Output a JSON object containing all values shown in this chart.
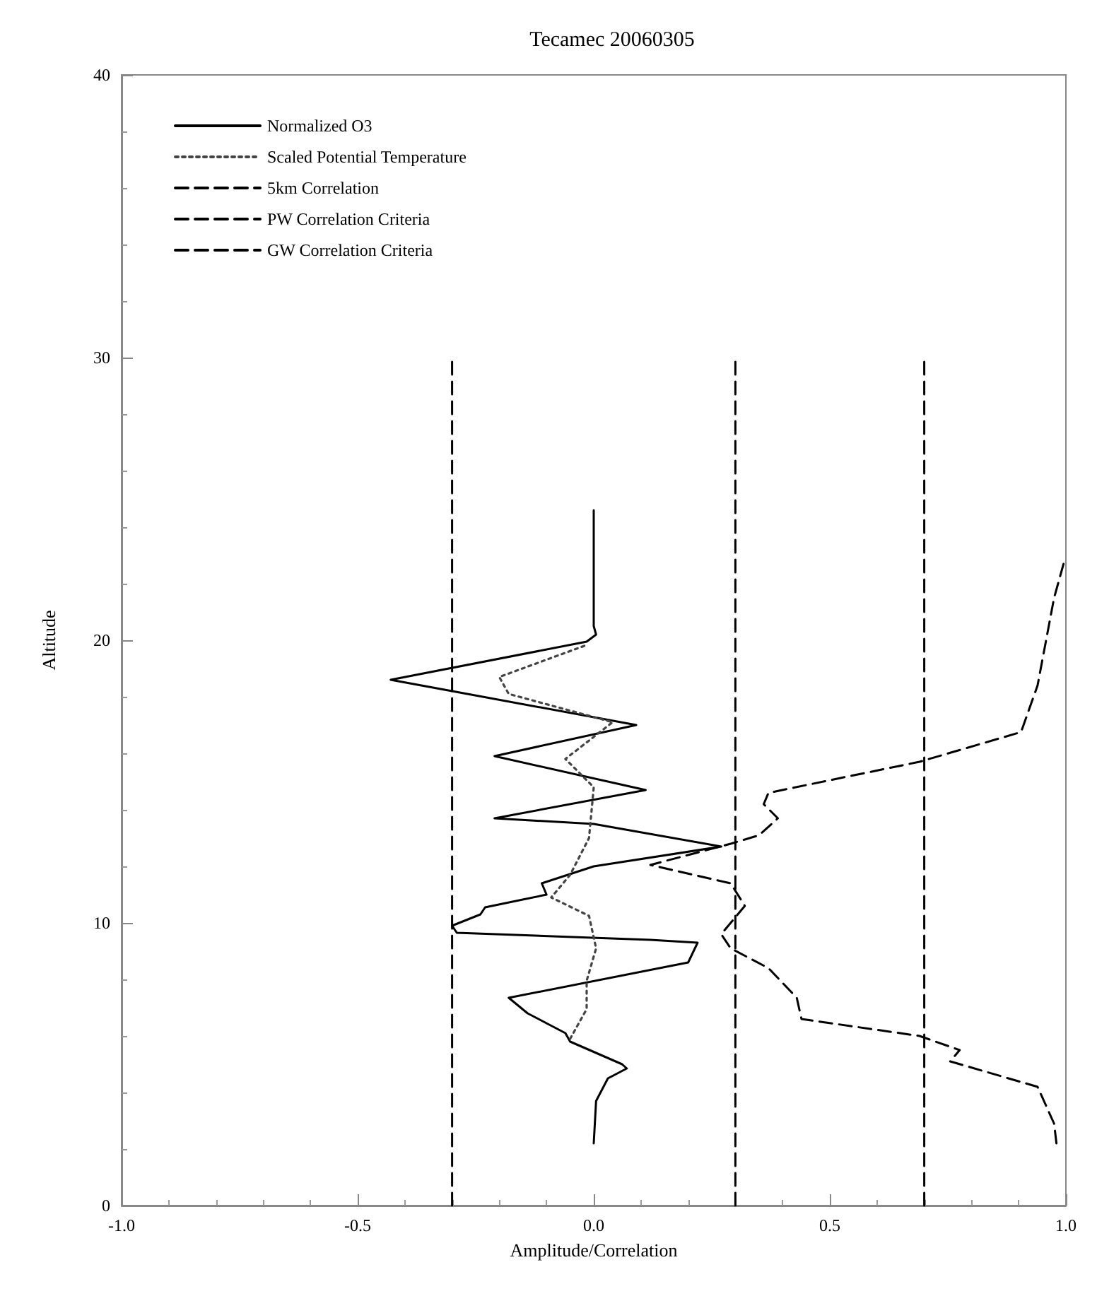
{
  "chart_data": {
    "type": "line",
    "title": "Tecamec 20060305",
    "xlabel": "Amplitude/Correlation",
    "ylabel": "Altitude",
    "xlim": [
      -1,
      1
    ],
    "xticks": [
      {
        "value": -1,
        "label": "-1.0"
      },
      {
        "value": -0.5,
        "label": "-0.5"
      },
      {
        "value": 0,
        "label": "0.0"
      },
      {
        "value": 0.5,
        "label": "0.5"
      },
      {
        "value": 1,
        "label": "1.0"
      }
    ],
    "ylim": [
      0,
      40
    ],
    "yticks": [
      0,
      10,
      20,
      30,
      40
    ],
    "grid": false,
    "legend": "top left",
    "marker": "none",
    "series": [
      {
        "name": "Normalized O3",
        "color": "#000000",
        "line_style": "solid",
        "x": [
          0,
          0,
          0.005,
          -0.015,
          -0.43,
          -0.3,
          0.09,
          -0.21,
          0.11,
          -0.21,
          0,
          0.27,
          0,
          -0.11,
          -0.1,
          -0.23,
          -0.24,
          -0.3,
          -0.29,
          0.12,
          0.22,
          0.2,
          -0.18,
          -0.14,
          -0.06,
          -0.05,
          0.06,
          0.07,
          0.03,
          0.005,
          0
        ],
        "values": [
          24.6,
          20.5,
          20.2,
          19.95,
          18.6,
          18.2,
          17,
          15.9,
          14.7,
          13.7,
          13.5,
          12.7,
          12,
          11.4,
          11,
          10.55,
          10.3,
          9.9,
          9.65,
          9.4,
          9.3,
          8.6,
          7.35,
          6.8,
          6.1,
          5.8,
          5,
          4.85,
          4.5,
          3.7,
          2.2
        ]
      },
      {
        "name": "Scaled Potential Temperature",
        "color": "#444444",
        "line_style": "dotted",
        "x": [
          -0.02,
          -0.2,
          -0.18,
          0.04,
          -0.06,
          0,
          -0.01,
          -0.05,
          -0.09,
          -0.01,
          0.005,
          -0.015,
          -0.015,
          -0.05
        ],
        "values": [
          19.8,
          18.7,
          18.1,
          17.1,
          15.8,
          14.8,
          13,
          11.7,
          10.9,
          10.25,
          9.1,
          7.95,
          6.95,
          5.9
        ]
      },
      {
        "name": "5km Correlation",
        "color": "#000000",
        "line_style": "dashed",
        "x": [
          0.995,
          0.975,
          0.94,
          0.905,
          0.69,
          0.37,
          0.36,
          0.39,
          0.35,
          0.29,
          0.12,
          0.29,
          0.32,
          0.27,
          0.29,
          0.37,
          0.43,
          0.44,
          0.69,
          0.775,
          0.755,
          0.94,
          0.975,
          0.98
        ],
        "values": [
          22.7,
          21.5,
          18.4,
          16.75,
          15.7,
          14.6,
          14.2,
          13.7,
          13.1,
          12.8,
          12.05,
          11.4,
          10.6,
          9.6,
          9.1,
          8.4,
          7.35,
          6.6,
          6,
          5.5,
          5.1,
          4.2,
          2.9,
          2.2
        ]
      },
      {
        "name": "PW Correlation Criteria",
        "color": "#000000",
        "line_style": "dashed",
        "x": [
          -0.3,
          -0.3,
          null,
          0.3,
          0.3
        ],
        "values": [
          0,
          30,
          null,
          0,
          30
        ]
      },
      {
        "name": "GW Correlation Criteria",
        "color": "#000000",
        "line_style": "dashed",
        "x": [
          0.7,
          0.7
        ],
        "values": [
          0,
          30
        ]
      }
    ]
  }
}
